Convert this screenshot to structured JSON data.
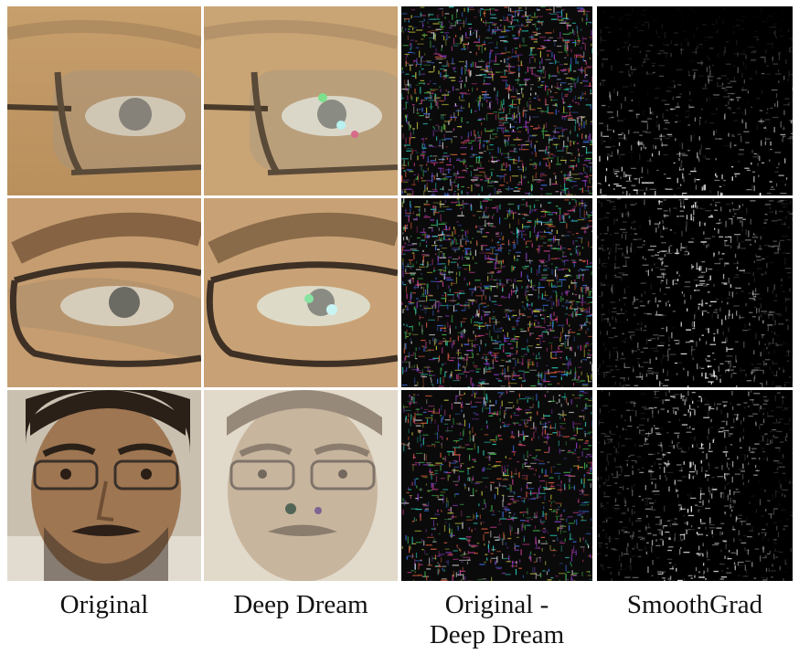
{
  "figure": {
    "columns": [
      {
        "id": "original",
        "lines": [
          "Original"
        ]
      },
      {
        "id": "deep-dream",
        "lines": [
          "Deep Dream"
        ]
      },
      {
        "id": "difference",
        "lines": [
          "Original -",
          "Deep Dream"
        ]
      },
      {
        "id": "smoothgrad",
        "lines": [
          "SmoothGrad"
        ]
      }
    ],
    "rows": [
      {
        "id": "eye-closeup"
      },
      {
        "id": "eye-glasses-closeup"
      },
      {
        "id": "full-face"
      }
    ],
    "colors": {
      "skin": "#c49a64",
      "skin_light": "#d8b888",
      "dream_wash": "#e0d6c4",
      "noise_background": "#0a0a0a",
      "saliency_background": "#000000"
    }
  }
}
